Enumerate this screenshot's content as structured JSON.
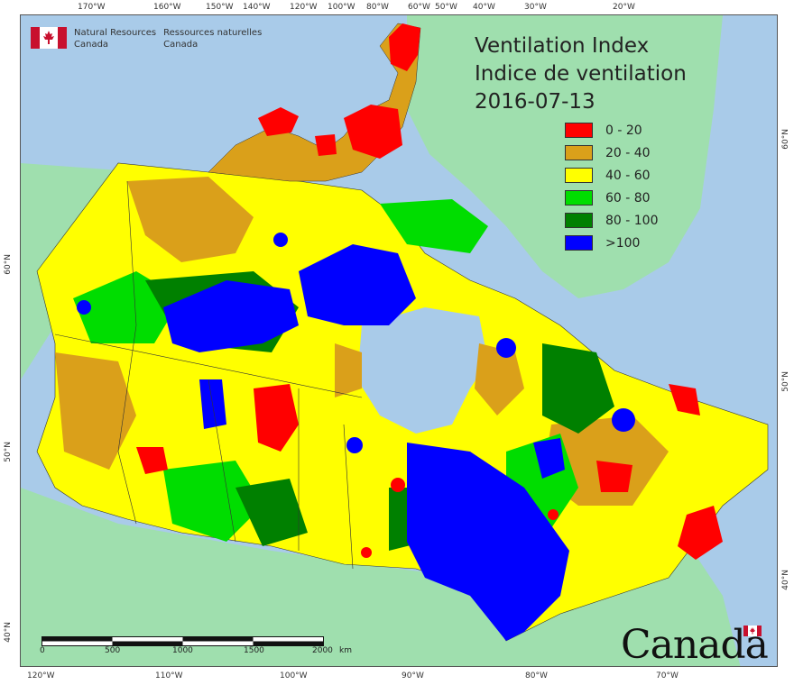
{
  "map": {
    "title_line1": "Ventilation Index",
    "title_line2": "Indice de ventilation",
    "date": "2016-07-13"
  },
  "agency": {
    "en_line1": "Natural Resources",
    "en_line2": "Canada",
    "fr_line1": "Ressources naturelles",
    "fr_line2": "Canada"
  },
  "wordmark": "Canada",
  "legend": [
    {
      "label": "0 - 20",
      "color": "#ff0000"
    },
    {
      "label": "20 - 40",
      "color": "#daa01a"
    },
    {
      "label": "40 - 60",
      "color": "#ffff00"
    },
    {
      "label": "60 - 80",
      "color": "#00dd00"
    },
    {
      "label": "80 - 100",
      "color": "#008000"
    },
    {
      "label": ">100",
      "color": "#0000ff"
    }
  ],
  "colors": {
    "water": "#a9cbe9",
    "foreign_land": "#9fdfae",
    "flag_red": "#c8102e"
  },
  "top_ticks": [
    "170°W",
    "160°W",
    "150°W",
    "140°W",
    "120°W",
    "100°W",
    "80°W",
    "60°W",
    "50°W",
    "40°W",
    "30°W",
    "20°W"
  ],
  "bottom_ticks": [
    "120°W",
    "110°W",
    "100°W",
    "90°W",
    "80°W",
    "70°W"
  ],
  "left_ticks": [
    "60°N",
    "50°N",
    "40°N"
  ],
  "right_ticks": [
    "60°N",
    "50°N",
    "40°N"
  ],
  "scale": {
    "labels": [
      "0",
      "500",
      "1000",
      "1500",
      "2000"
    ],
    "unit": "km"
  }
}
